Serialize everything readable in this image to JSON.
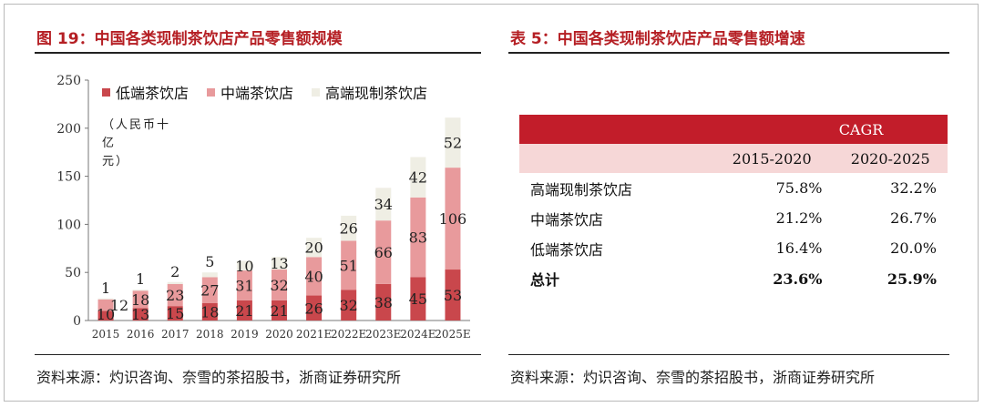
{
  "left": {
    "title": "图 19：中国各类现制茶饮店产品零售额规模",
    "unit_line1": "（人民币十亿",
    "unit_line2": "元）",
    "source": "资料来源：灼识咨询、奈雪的茶招股书，浙商证券研究所"
  },
  "right": {
    "title": "表 5：中国各类现制茶饮店产品零售额增速",
    "source": "资料来源：灼识咨询、奈雪的茶招股书，浙商证券研究所",
    "table": {
      "header": "CAGR",
      "col1": "2015-2020",
      "col2": "2020-2025",
      "rows": [
        {
          "label": "高端现制茶饮店",
          "v1": "75.8%",
          "v2": "32.2%"
        },
        {
          "label": "中端茶饮店",
          "v1": "21.2%",
          "v2": "26.7%"
        },
        {
          "label": "低端茶饮店",
          "v1": "16.4%",
          "v2": "20.0%"
        }
      ],
      "total": {
        "label": "总计",
        "v1": "23.6%",
        "v2": "25.9%"
      }
    }
  },
  "colors": {
    "low": "#c9474c",
    "mid": "#e89a9c",
    "high": "#efeee4",
    "accent": "#b51f24"
  },
  "chart_data": {
    "type": "bar",
    "stacked": true,
    "categories": [
      "2015",
      "2016",
      "2017",
      "2018",
      "2019",
      "2020",
      "2021E",
      "2022E",
      "2023E",
      "2024E",
      "2025E"
    ],
    "series": [
      {
        "name": "低端茶饮店",
        "values": [
          10,
          13,
          15,
          18,
          21,
          21,
          26,
          32,
          38,
          45,
          53
        ]
      },
      {
        "name": "中端茶饮店",
        "values": [
          12,
          18,
          23,
          27,
          31,
          32,
          40,
          51,
          66,
          83,
          106
        ]
      },
      {
        "name": "高端现制茶饮店",
        "values": [
          1,
          1,
          2,
          5,
          10,
          13,
          20,
          26,
          34,
          42,
          52
        ]
      }
    ],
    "ylim": [
      0,
      250
    ],
    "yticks": [
      0,
      50,
      100,
      150,
      200,
      250
    ],
    "legend": "top",
    "grid": false
  }
}
